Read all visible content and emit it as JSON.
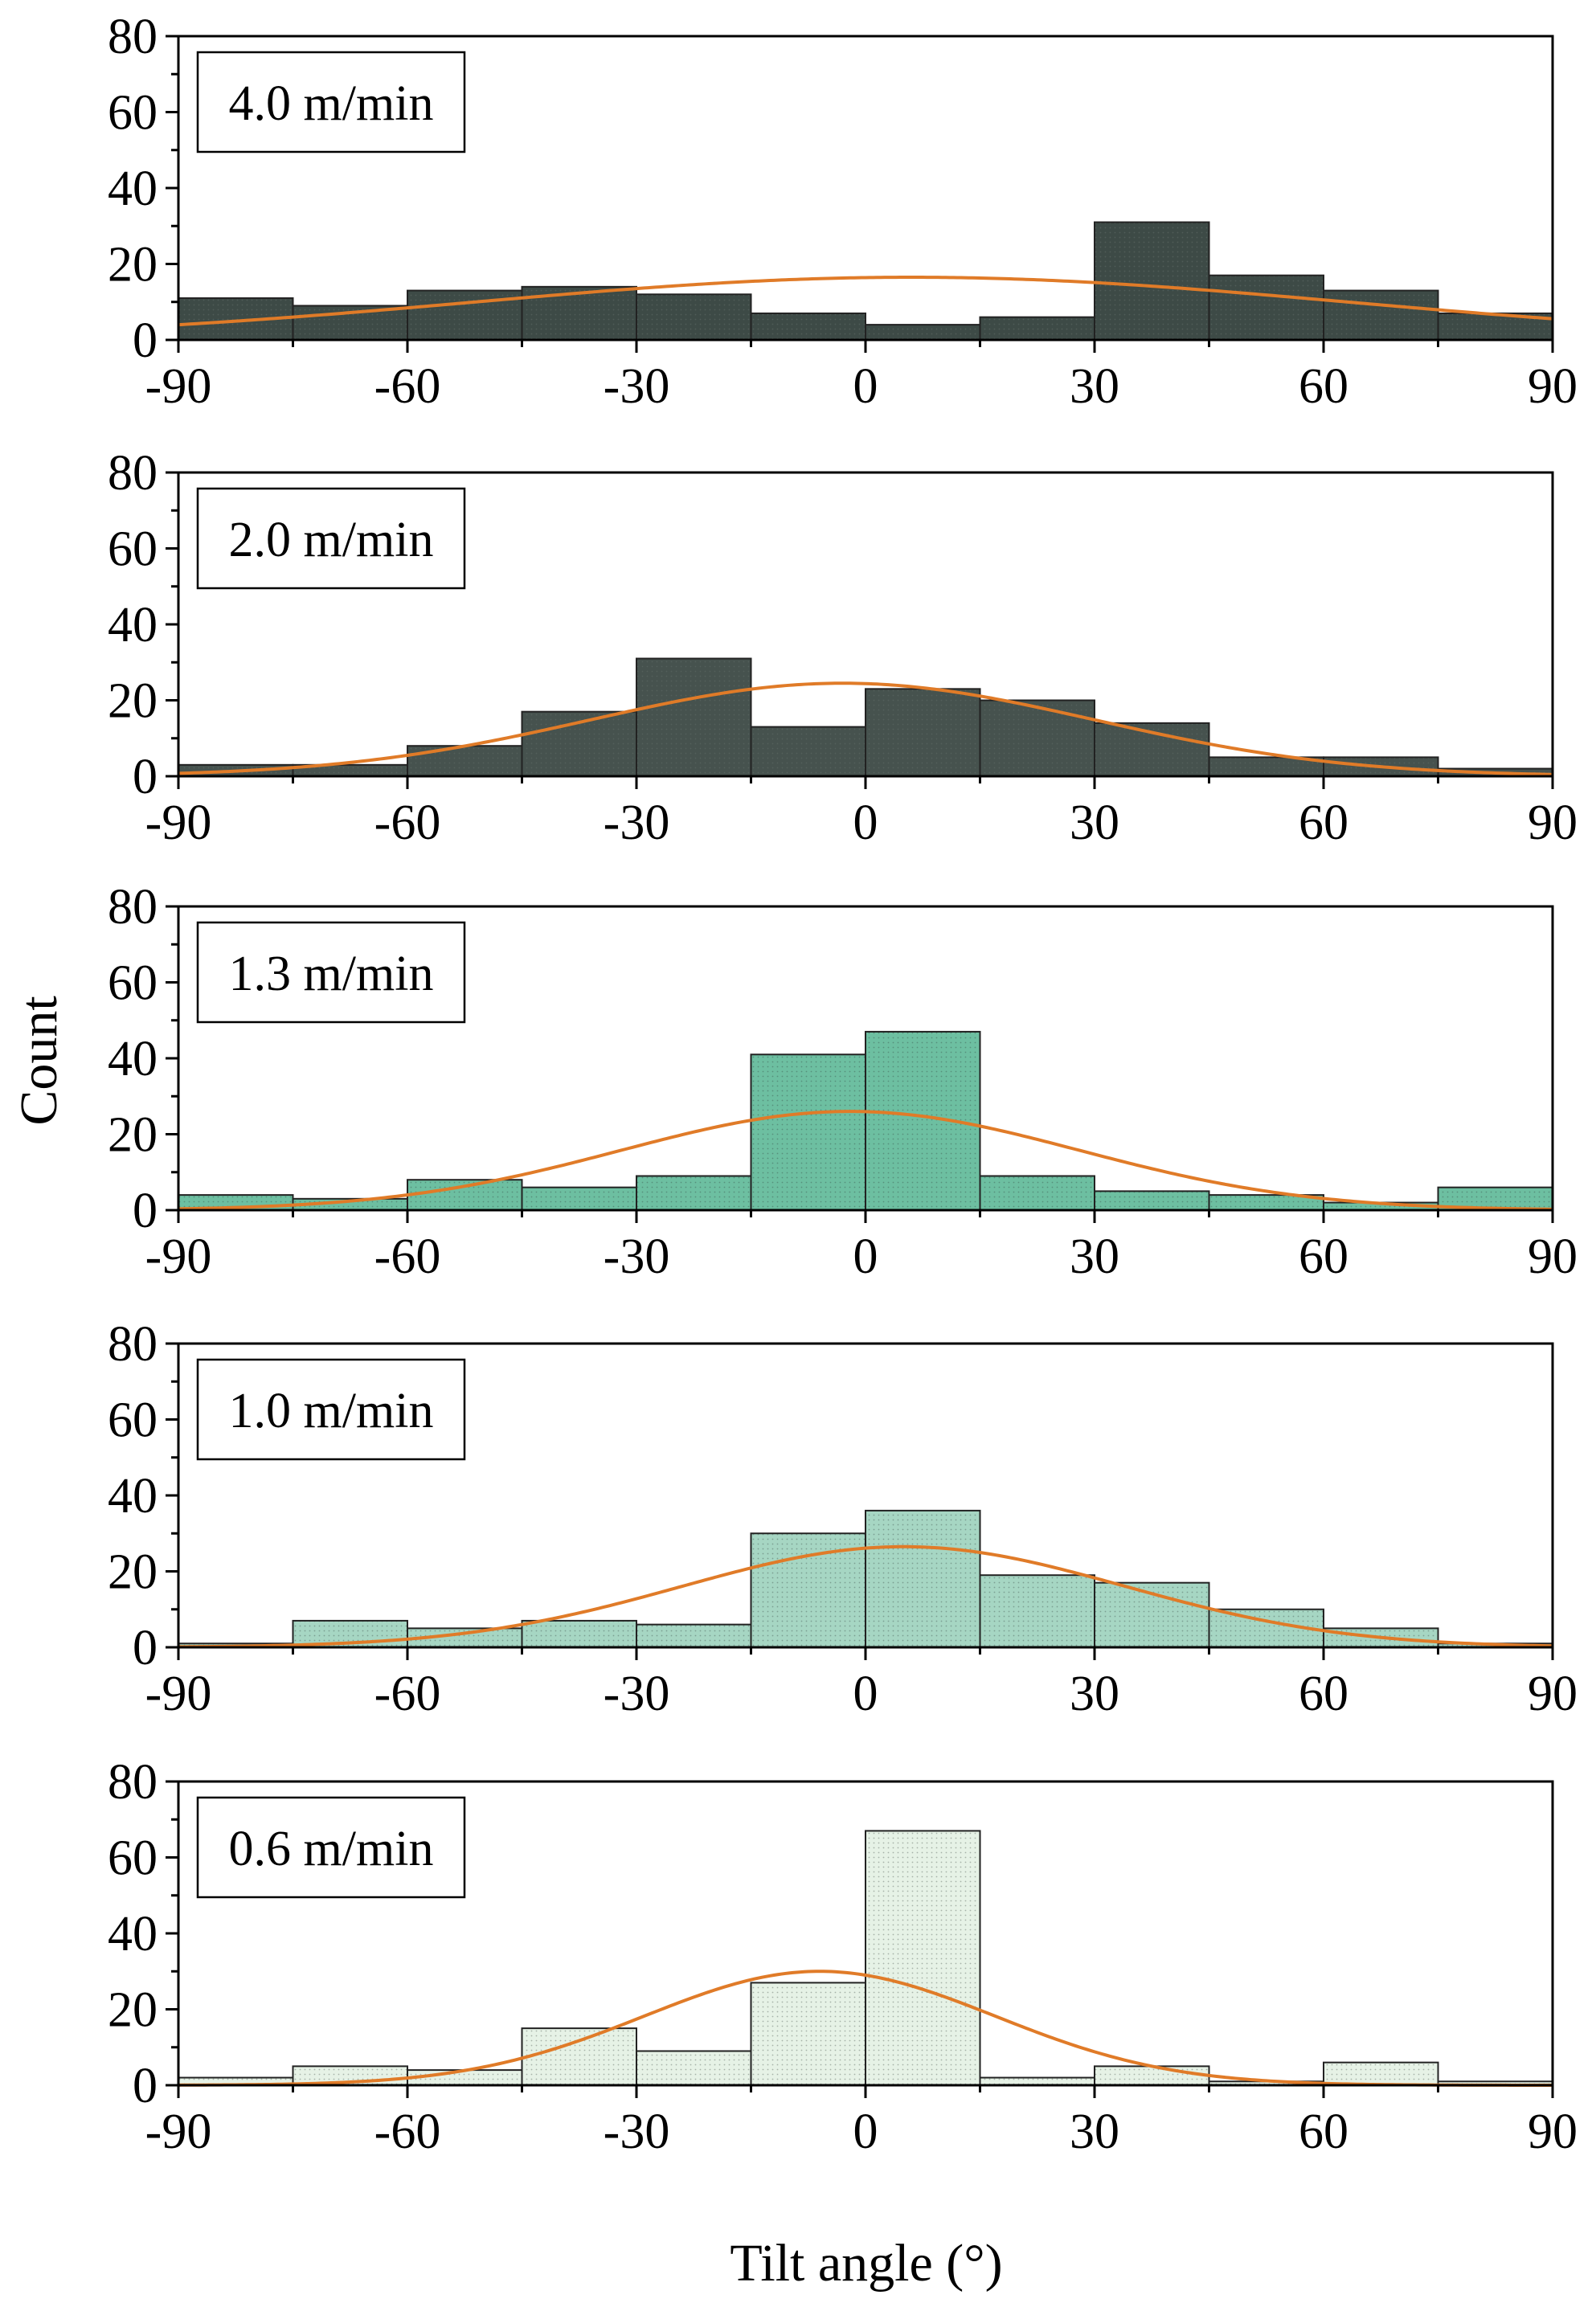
{
  "chart_data": {
    "type": "bar",
    "ylabel": "Count",
    "xlabel": "Tilt angle (°)",
    "xlim": [
      -90,
      90
    ],
    "ylim": [
      0,
      80
    ],
    "xticks": [
      -90,
      -60,
      -30,
      0,
      30,
      60,
      90
    ],
    "xtick_labels": [
      "-90",
      "-60",
      "-30",
      "0",
      "30",
      "60",
      "90"
    ],
    "yticks": [
      0,
      20,
      40,
      60,
      80
    ],
    "ytick_labels": [
      "0",
      "20",
      "40",
      "60",
      "80"
    ],
    "bin_edges": [
      -90,
      -75,
      -60,
      -45,
      -30,
      -15,
      0,
      15,
      30,
      45,
      60,
      75,
      90
    ],
    "fit_color": "#E07B28",
    "panels": [
      {
        "label": "4.0 m/min",
        "fill_color": "#3D4A46",
        "counts": [
          11,
          9,
          13,
          14,
          12,
          7,
          4,
          6,
          31,
          17,
          13,
          7
        ],
        "fit": {
          "peak": 16.5,
          "mean": 6,
          "sigma": 57
        }
      },
      {
        "label": "2.0 m/min",
        "fill_color": "#46524E",
        "counts": [
          3,
          3,
          8,
          17,
          31,
          13,
          23,
          20,
          14,
          5,
          5,
          2
        ],
        "fit": {
          "peak": 24.5,
          "mean": -3,
          "sigma": 33
        }
      },
      {
        "label": "1.3 m/min",
        "fill_color": "#6DBFA1",
        "counts": [
          4,
          3,
          8,
          6,
          9,
          41,
          47,
          9,
          5,
          4,
          2,
          6
        ],
        "fit": {
          "peak": 26,
          "mean": -2,
          "sigma": 30
        }
      },
      {
        "label": "1.0 m/min",
        "fill_color": "#A6D6C3",
        "counts": [
          1,
          7,
          5,
          7,
          6,
          30,
          36,
          19,
          17,
          10,
          5,
          1
        ],
        "fit": {
          "peak": 26.5,
          "mean": 5,
          "sigma": 29
        }
      },
      {
        "label": "0.6 m/min",
        "fill_color": "#E6F2E6",
        "counts": [
          2,
          5,
          4,
          15,
          9,
          27,
          67,
          2,
          5,
          1,
          6,
          1
        ],
        "fit": {
          "peak": 30,
          "mean": -6,
          "sigma": 23
        }
      }
    ]
  }
}
